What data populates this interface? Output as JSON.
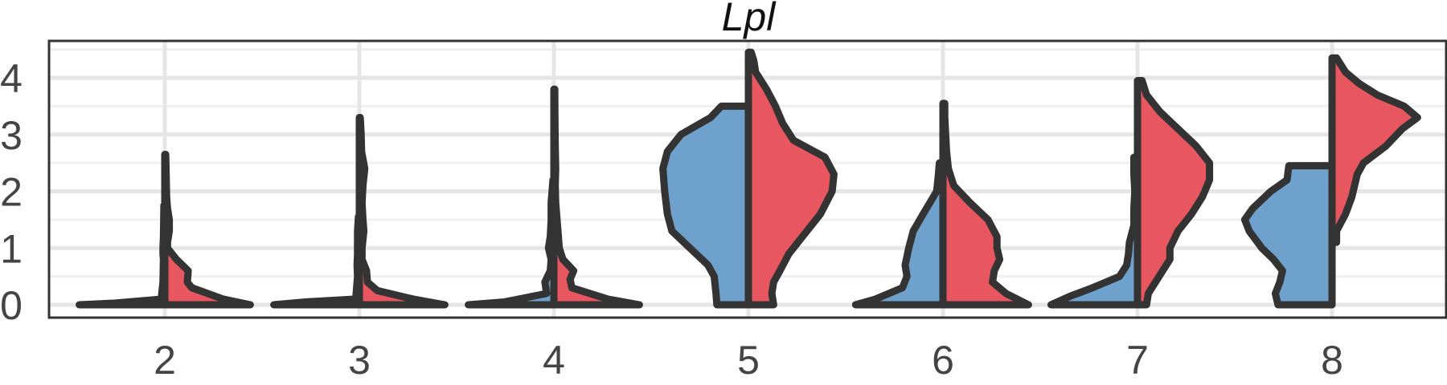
{
  "chart_data": {
    "type": "violin",
    "title": "Lpl",
    "categories": [
      "2",
      "3",
      "4",
      "5",
      "6",
      "7",
      "8"
    ],
    "x_tick_labels": [
      "2",
      "3",
      "4",
      "5",
      "6",
      "7",
      "8"
    ],
    "y_ticks": [
      0,
      1,
      2,
      3,
      4
    ],
    "ylim": [
      -0.35,
      4.55
    ],
    "grid": true,
    "legend": "none",
    "colors": {
      "left_half": "#6ea1cc",
      "right_half": "#e8575f",
      "outline": "#333333"
    },
    "violins": [
      {
        "category": "2",
        "left": {
          "ymin": 0,
          "ymax": 1.75,
          "profile": [
            [
              0,
              0.95
            ],
            [
              0.03,
              0.55
            ],
            [
              0.1,
              0.04
            ],
            [
              0.4,
              0.02
            ],
            [
              0.8,
              0.015
            ],
            [
              0.9,
              0.02
            ],
            [
              1.0,
              0.02
            ],
            [
              1.2,
              0.015
            ],
            [
              1.5,
              0.012
            ],
            [
              1.75,
              0.01
            ]
          ]
        },
        "right": {
          "ymin": 0,
          "ymax": 2.65,
          "profile": [
            [
              0,
              0.95
            ],
            [
              0.1,
              0.65
            ],
            [
              0.3,
              0.3
            ],
            [
              0.4,
              0.25
            ],
            [
              0.6,
              0.26
            ],
            [
              0.8,
              0.13
            ],
            [
              1.0,
              0.03
            ],
            [
              1.1,
              0.03
            ],
            [
              1.3,
              0.05
            ],
            [
              1.5,
              0.05
            ],
            [
              1.7,
              0.03
            ],
            [
              1.9,
              0.02
            ],
            [
              2.3,
              0.015
            ],
            [
              2.65,
              0.01
            ]
          ]
        }
      },
      {
        "category": "3",
        "left": {
          "ymin": 0,
          "ymax": 1.55,
          "profile": [
            [
              0,
              0.95
            ],
            [
              0.05,
              0.6
            ],
            [
              0.1,
              0.04
            ],
            [
              0.3,
              0.03
            ],
            [
              0.5,
              0.02
            ],
            [
              0.7,
              0.025
            ],
            [
              0.9,
              0.02
            ],
            [
              1.1,
              0.02
            ],
            [
              1.3,
              0.02
            ],
            [
              1.55,
              0.01
            ]
          ]
        },
        "right": {
          "ymin": 0,
          "ymax": 3.3,
          "profile": [
            [
              0,
              0.95
            ],
            [
              0.1,
              0.6
            ],
            [
              0.25,
              0.2
            ],
            [
              0.4,
              0.09
            ],
            [
              0.6,
              0.08
            ],
            [
              0.8,
              0.03
            ],
            [
              1.0,
              0.03
            ],
            [
              1.3,
              0.05
            ],
            [
              1.5,
              0.04
            ],
            [
              1.8,
              0.03
            ],
            [
              2.1,
              0.04
            ],
            [
              2.4,
              0.06
            ],
            [
              2.7,
              0.025
            ],
            [
              3.0,
              0.02
            ],
            [
              3.3,
              0.01
            ]
          ]
        }
      },
      {
        "category": "4",
        "left": {
          "ymin": 0,
          "ymax": 2.2,
          "profile": [
            [
              0,
              0.95
            ],
            [
              0.05,
              0.55
            ],
            [
              0.2,
              0.08
            ],
            [
              0.4,
              0.1
            ],
            [
              0.6,
              0.04
            ],
            [
              0.8,
              0.03
            ],
            [
              1.0,
              0.06
            ],
            [
              1.2,
              0.04
            ],
            [
              1.5,
              0.03
            ],
            [
              1.8,
              0.03
            ],
            [
              2.0,
              0.02
            ],
            [
              2.2,
              0.01
            ]
          ]
        },
        "right": {
          "ymin": 0,
          "ymax": 3.8,
          "profile": [
            [
              0,
              0.95
            ],
            [
              0.1,
              0.6
            ],
            [
              0.3,
              0.2
            ],
            [
              0.45,
              0.18
            ],
            [
              0.6,
              0.22
            ],
            [
              0.8,
              0.1
            ],
            [
              1.0,
              0.06
            ],
            [
              1.2,
              0.05
            ],
            [
              1.5,
              0.035
            ],
            [
              1.8,
              0.02
            ],
            [
              2.1,
              0.015
            ],
            [
              2.4,
              0.02
            ],
            [
              2.8,
              0.015
            ],
            [
              3.2,
              0.012
            ],
            [
              3.8,
              0.01
            ]
          ]
        }
      },
      {
        "category": "5",
        "left": {
          "ymin": 0,
          "ymax": 3.5,
          "profile": [
            [
              0,
              0.35
            ],
            [
              0.2,
              0.36
            ],
            [
              0.5,
              0.38
            ],
            [
              0.7,
              0.45
            ],
            [
              1.0,
              0.65
            ],
            [
              1.3,
              0.85
            ],
            [
              1.6,
              0.9
            ],
            [
              2.0,
              0.93
            ],
            [
              2.4,
              0.95
            ],
            [
              2.7,
              0.9
            ],
            [
              3.0,
              0.75
            ],
            [
              3.3,
              0.42
            ],
            [
              3.5,
              0.3
            ]
          ]
        },
        "right": {
          "ymin": 0,
          "ymax": 4.45,
          "profile": [
            [
              0,
              0.28
            ],
            [
              0.2,
              0.26
            ],
            [
              0.4,
              0.28
            ],
            [
              0.6,
              0.35
            ],
            [
              0.9,
              0.45
            ],
            [
              1.2,
              0.6
            ],
            [
              1.6,
              0.8
            ],
            [
              2.0,
              0.93
            ],
            [
              2.3,
              0.95
            ],
            [
              2.6,
              0.85
            ],
            [
              2.9,
              0.5
            ],
            [
              3.2,
              0.38
            ],
            [
              3.5,
              0.3
            ],
            [
              3.8,
              0.2
            ],
            [
              4.1,
              0.08
            ],
            [
              4.3,
              0.06
            ],
            [
              4.45,
              0.03
            ]
          ]
        }
      },
      {
        "category": "6",
        "left": {
          "ymin": 0,
          "ymax": 2.5,
          "profile": [
            [
              0,
              0.97
            ],
            [
              0.1,
              0.75
            ],
            [
              0.3,
              0.45
            ],
            [
              0.5,
              0.4
            ],
            [
              0.7,
              0.42
            ],
            [
              1.0,
              0.38
            ],
            [
              1.3,
              0.33
            ],
            [
              1.6,
              0.22
            ],
            [
              2.0,
              0.07
            ],
            [
              2.3,
              0.05
            ],
            [
              2.5,
              0.04
            ]
          ]
        },
        "right": {
          "ymin": 0,
          "ymax": 3.55,
          "profile": [
            [
              0,
              0.95
            ],
            [
              0.2,
              0.7
            ],
            [
              0.4,
              0.55
            ],
            [
              0.6,
              0.57
            ],
            [
              0.8,
              0.63
            ],
            [
              1.0,
              0.6
            ],
            [
              1.2,
              0.6
            ],
            [
              1.5,
              0.5
            ],
            [
              1.8,
              0.3
            ],
            [
              2.1,
              0.12
            ],
            [
              2.4,
              0.06
            ],
            [
              2.7,
              0.04
            ],
            [
              3.0,
              0.03
            ],
            [
              3.3,
              0.02
            ],
            [
              3.55,
              0.02
            ]
          ]
        }
      },
      {
        "category": "7",
        "left": {
          "ymin": 0,
          "ymax": 2.6,
          "profile": [
            [
              0,
              0.96
            ],
            [
              0.15,
              0.75
            ],
            [
              0.3,
              0.5
            ],
            [
              0.5,
              0.2
            ],
            [
              0.7,
              0.12
            ],
            [
              0.9,
              0.1
            ],
            [
              1.1,
              0.09
            ],
            [
              1.4,
              0.04
            ],
            [
              1.7,
              0.04
            ],
            [
              2.0,
              0.03
            ],
            [
              2.3,
              0.04
            ],
            [
              2.6,
              0.04
            ]
          ]
        },
        "right": {
          "ymin": 0,
          "ymax": 3.95,
          "profile": [
            [
              0,
              0.1
            ],
            [
              0.2,
              0.12
            ],
            [
              0.4,
              0.2
            ],
            [
              0.6,
              0.28
            ],
            [
              0.8,
              0.36
            ],
            [
              1.0,
              0.36
            ],
            [
              1.3,
              0.45
            ],
            [
              1.6,
              0.6
            ],
            [
              1.9,
              0.72
            ],
            [
              2.2,
              0.8
            ],
            [
              2.5,
              0.8
            ],
            [
              2.8,
              0.65
            ],
            [
              3.1,
              0.45
            ],
            [
              3.4,
              0.25
            ],
            [
              3.7,
              0.1
            ],
            [
              3.95,
              0.05
            ]
          ]
        }
      },
      {
        "category": "8",
        "left": {
          "ymin": 0,
          "ymax": 2.45,
          "profile": [
            [
              0,
              0.6
            ],
            [
              0.2,
              0.63
            ],
            [
              0.4,
              0.58
            ],
            [
              0.6,
              0.55
            ],
            [
              0.8,
              0.65
            ],
            [
              1.0,
              0.78
            ],
            [
              1.3,
              0.92
            ],
            [
              1.5,
              0.97
            ],
            [
              1.7,
              0.88
            ],
            [
              2.0,
              0.68
            ],
            [
              2.2,
              0.5
            ],
            [
              2.45,
              0.48
            ]
          ]
        },
        "right": {
          "ymin": 1.1,
          "ymax": 4.35,
          "profile": [
            [
              1.1,
              0.05
            ],
            [
              1.3,
              0.05
            ],
            [
              1.6,
              0.15
            ],
            [
              1.9,
              0.22
            ],
            [
              2.1,
              0.25
            ],
            [
              2.3,
              0.28
            ],
            [
              2.5,
              0.35
            ],
            [
              2.8,
              0.6
            ],
            [
              3.1,
              0.78
            ],
            [
              3.3,
              0.95
            ],
            [
              3.5,
              0.8
            ],
            [
              3.7,
              0.5
            ],
            [
              3.9,
              0.3
            ],
            [
              4.1,
              0.15
            ],
            [
              4.35,
              0.05
            ]
          ]
        }
      }
    ]
  }
}
